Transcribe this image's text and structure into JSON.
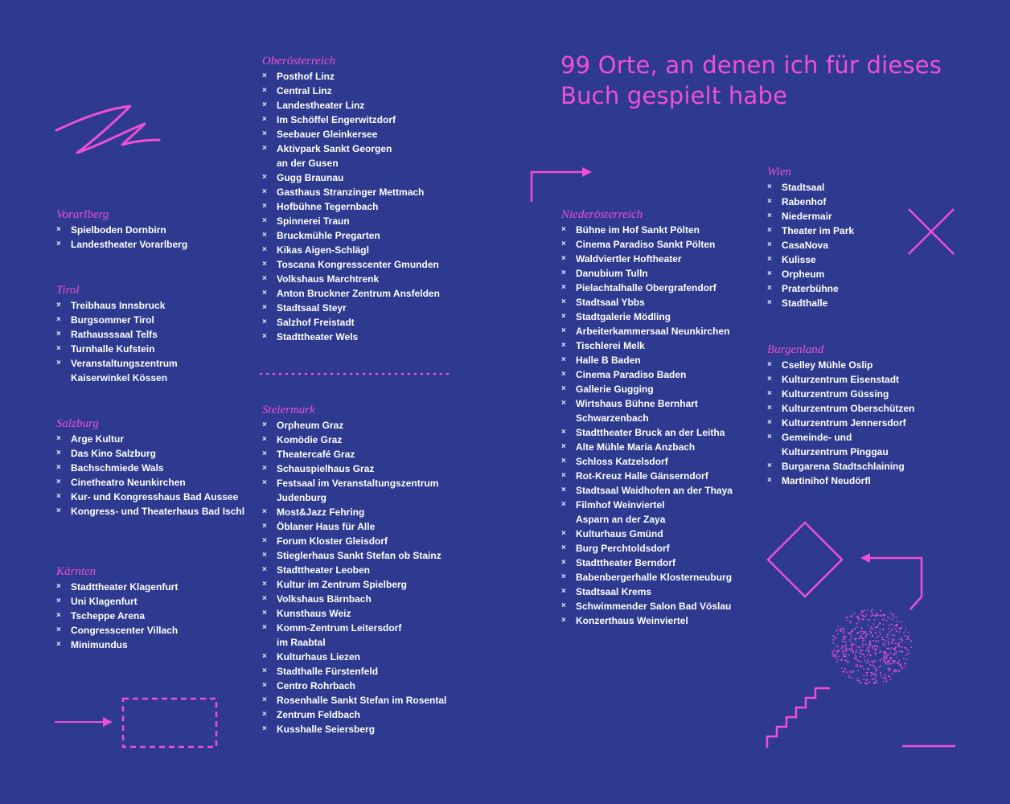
{
  "title": "99 Orte, an denen ich für dieses Buch gespielt habe",
  "bullet": "×",
  "accent_color": "#f04fd6",
  "background_color": "#2d3a8f",
  "regions": {
    "vorarlberg": {
      "name": "Vorarlberg",
      "venues": [
        [
          "Spielboden Dornbirn"
        ],
        [
          "Landestheater Vorarlberg"
        ]
      ]
    },
    "tirol": {
      "name": "Tirol",
      "venues": [
        [
          "Treibhaus Innsbruck"
        ],
        [
          "Burgsommer Tirol"
        ],
        [
          "Rathausssaal Telfs"
        ],
        [
          "Turnhalle Kufstein"
        ],
        [
          "Veranstaltungszentrum",
          "Kaiserwinkel Kössen"
        ]
      ]
    },
    "salzburg": {
      "name": "Salzburg",
      "venues": [
        [
          "Arge Kultur"
        ],
        [
          "Das Kino Salzburg"
        ],
        [
          "Bachschmiede Wals"
        ],
        [
          "Cinetheatro Neunkirchen"
        ],
        [
          "Kur- und Kongresshaus Bad Aussee"
        ],
        [
          "Kongress- und Theaterhaus Bad Ischl"
        ]
      ]
    },
    "kaernten": {
      "name": "Kärnten",
      "venues": [
        [
          "Stadttheater Klagenfurt"
        ],
        [
          "Uni Klagenfurt"
        ],
        [
          "Tscheppe Arena"
        ],
        [
          "Congresscenter Villach"
        ],
        [
          "Minimundus"
        ]
      ]
    },
    "oberoesterreich": {
      "name": "Oberösterreich",
      "venues": [
        [
          "Posthof Linz"
        ],
        [
          "Central Linz"
        ],
        [
          "Landestheater Linz"
        ],
        [
          "Im Schöffel Engerwitzdorf"
        ],
        [
          "Seebauer Gleinkersee"
        ],
        [
          "Aktivpark Sankt Georgen",
          "an der Gusen"
        ],
        [
          "Gugg Braunau"
        ],
        [
          "Gasthaus Stranzinger Mettmach"
        ],
        [
          "Hofbühne Tegernbach"
        ],
        [
          "Spinnerei Traun"
        ],
        [
          "Bruckmühle Pregarten"
        ],
        [
          "Kikas Aigen-Schlägl"
        ],
        [
          "Toscana Kongresscenter Gmunden"
        ],
        [
          "Volkshaus Marchtrenk"
        ],
        [
          "Anton Bruckner Zentrum Ansfelden"
        ],
        [
          "Stadtsaal Steyr"
        ],
        [
          "Salzhof Freistadt"
        ],
        [
          "Stadttheater Wels"
        ]
      ]
    },
    "steiermark": {
      "name": "Steiermark",
      "venues": [
        [
          "Orpheum Graz"
        ],
        [
          "Komödie Graz"
        ],
        [
          "Theatercafé Graz"
        ],
        [
          "Schauspielhaus Graz"
        ],
        [
          "Festsaal im Veranstaltungszentrum",
          "Judenburg"
        ],
        [
          "Most&Jazz Fehring"
        ],
        [
          "Öblaner Haus für Alle"
        ],
        [
          "Forum Kloster Gleisdorf"
        ],
        [
          "Stieglerhaus Sankt Stefan ob Stainz"
        ],
        [
          "Stadttheater Leoben"
        ],
        [
          "Kultur im Zentrum Spielberg"
        ],
        [
          "Volkshaus Bärnbach"
        ],
        [
          "Kunsthaus Weiz"
        ],
        [
          "Komm-Zentrum Leitersdorf",
          "im Raabtal"
        ],
        [
          "Kulturhaus Liezen"
        ],
        [
          "Stadthalle Fürstenfeld"
        ],
        [
          "Centro Rohrbach"
        ],
        [
          "Rosenhalle Sankt Stefan im Rosental"
        ],
        [
          "Zentrum Feldbach"
        ],
        [
          "Kusshalle Seiersberg"
        ]
      ]
    },
    "niederoesterreich": {
      "name": "Niederösterreich",
      "venues": [
        [
          "Bühne im Hof Sankt Pölten"
        ],
        [
          "Cinema Paradiso Sankt Pölten"
        ],
        [
          "Waldviertler Hoftheater"
        ],
        [
          "Danubium Tulln"
        ],
        [
          "Pielachtalhalle Obergrafendorf"
        ],
        [
          "Stadtsaal Ybbs"
        ],
        [
          "Stadtgalerie Mödling"
        ],
        [
          "Arbeiterkammersaal Neunkirchen"
        ],
        [
          "Tischlerei Melk"
        ],
        [
          "Halle B Baden"
        ],
        [
          "Cinema Paradiso Baden"
        ],
        [
          "Gallerie Gugging"
        ],
        [
          "Wirtshaus Bühne Bernhart",
          "Schwarzenbach"
        ],
        [
          "Stadttheater Bruck an der Leitha"
        ],
        [
          "Alte Mühle Maria Anzbach"
        ],
        [
          "Schloss Katzelsdorf"
        ],
        [
          "Rot-Kreuz Halle Gänserndorf"
        ],
        [
          "Stadtsaal Waidhofen an der Thaya"
        ],
        [
          "Filmhof Weinviertel",
          "Asparn an der Zaya"
        ],
        [
          "Kulturhaus Gmünd"
        ],
        [
          "Burg Perchtoldsdorf"
        ],
        [
          "Stadttheater Berndorf"
        ],
        [
          "Babenbergerhalle Klosterneuburg"
        ],
        [
          "Stadtsaal Krems"
        ],
        [
          "Schwimmender Salon Bad Vöslau"
        ],
        [
          "Konzerthaus Weinviertel"
        ]
      ]
    },
    "wien": {
      "name": "Wien",
      "venues": [
        [
          "Stadtsaal"
        ],
        [
          "Rabenhof"
        ],
        [
          "Niedermair"
        ],
        [
          "Theater im Park"
        ],
        [
          "CasaNova"
        ],
        [
          "Kulisse"
        ],
        [
          "Orpheum"
        ],
        [
          "Praterbühne"
        ],
        [
          "Stadthalle"
        ]
      ]
    },
    "burgenland": {
      "name": "Burgenland",
      "venues": [
        [
          "Cselley Mühle Oslip"
        ],
        [
          "Kulturzentrum Eisenstadt"
        ],
        [
          "Kulturzentrum Güssing"
        ],
        [
          "Kulturzentrum Oberschützen"
        ],
        [
          "Kulturzentrum Jennersdorf"
        ],
        [
          "Gemeinde- und",
          "Kulturzentrum Pinggau"
        ],
        [
          "Burgarena Stadtschlaining"
        ],
        [
          "Martinihof Neudörfl"
        ]
      ]
    }
  }
}
